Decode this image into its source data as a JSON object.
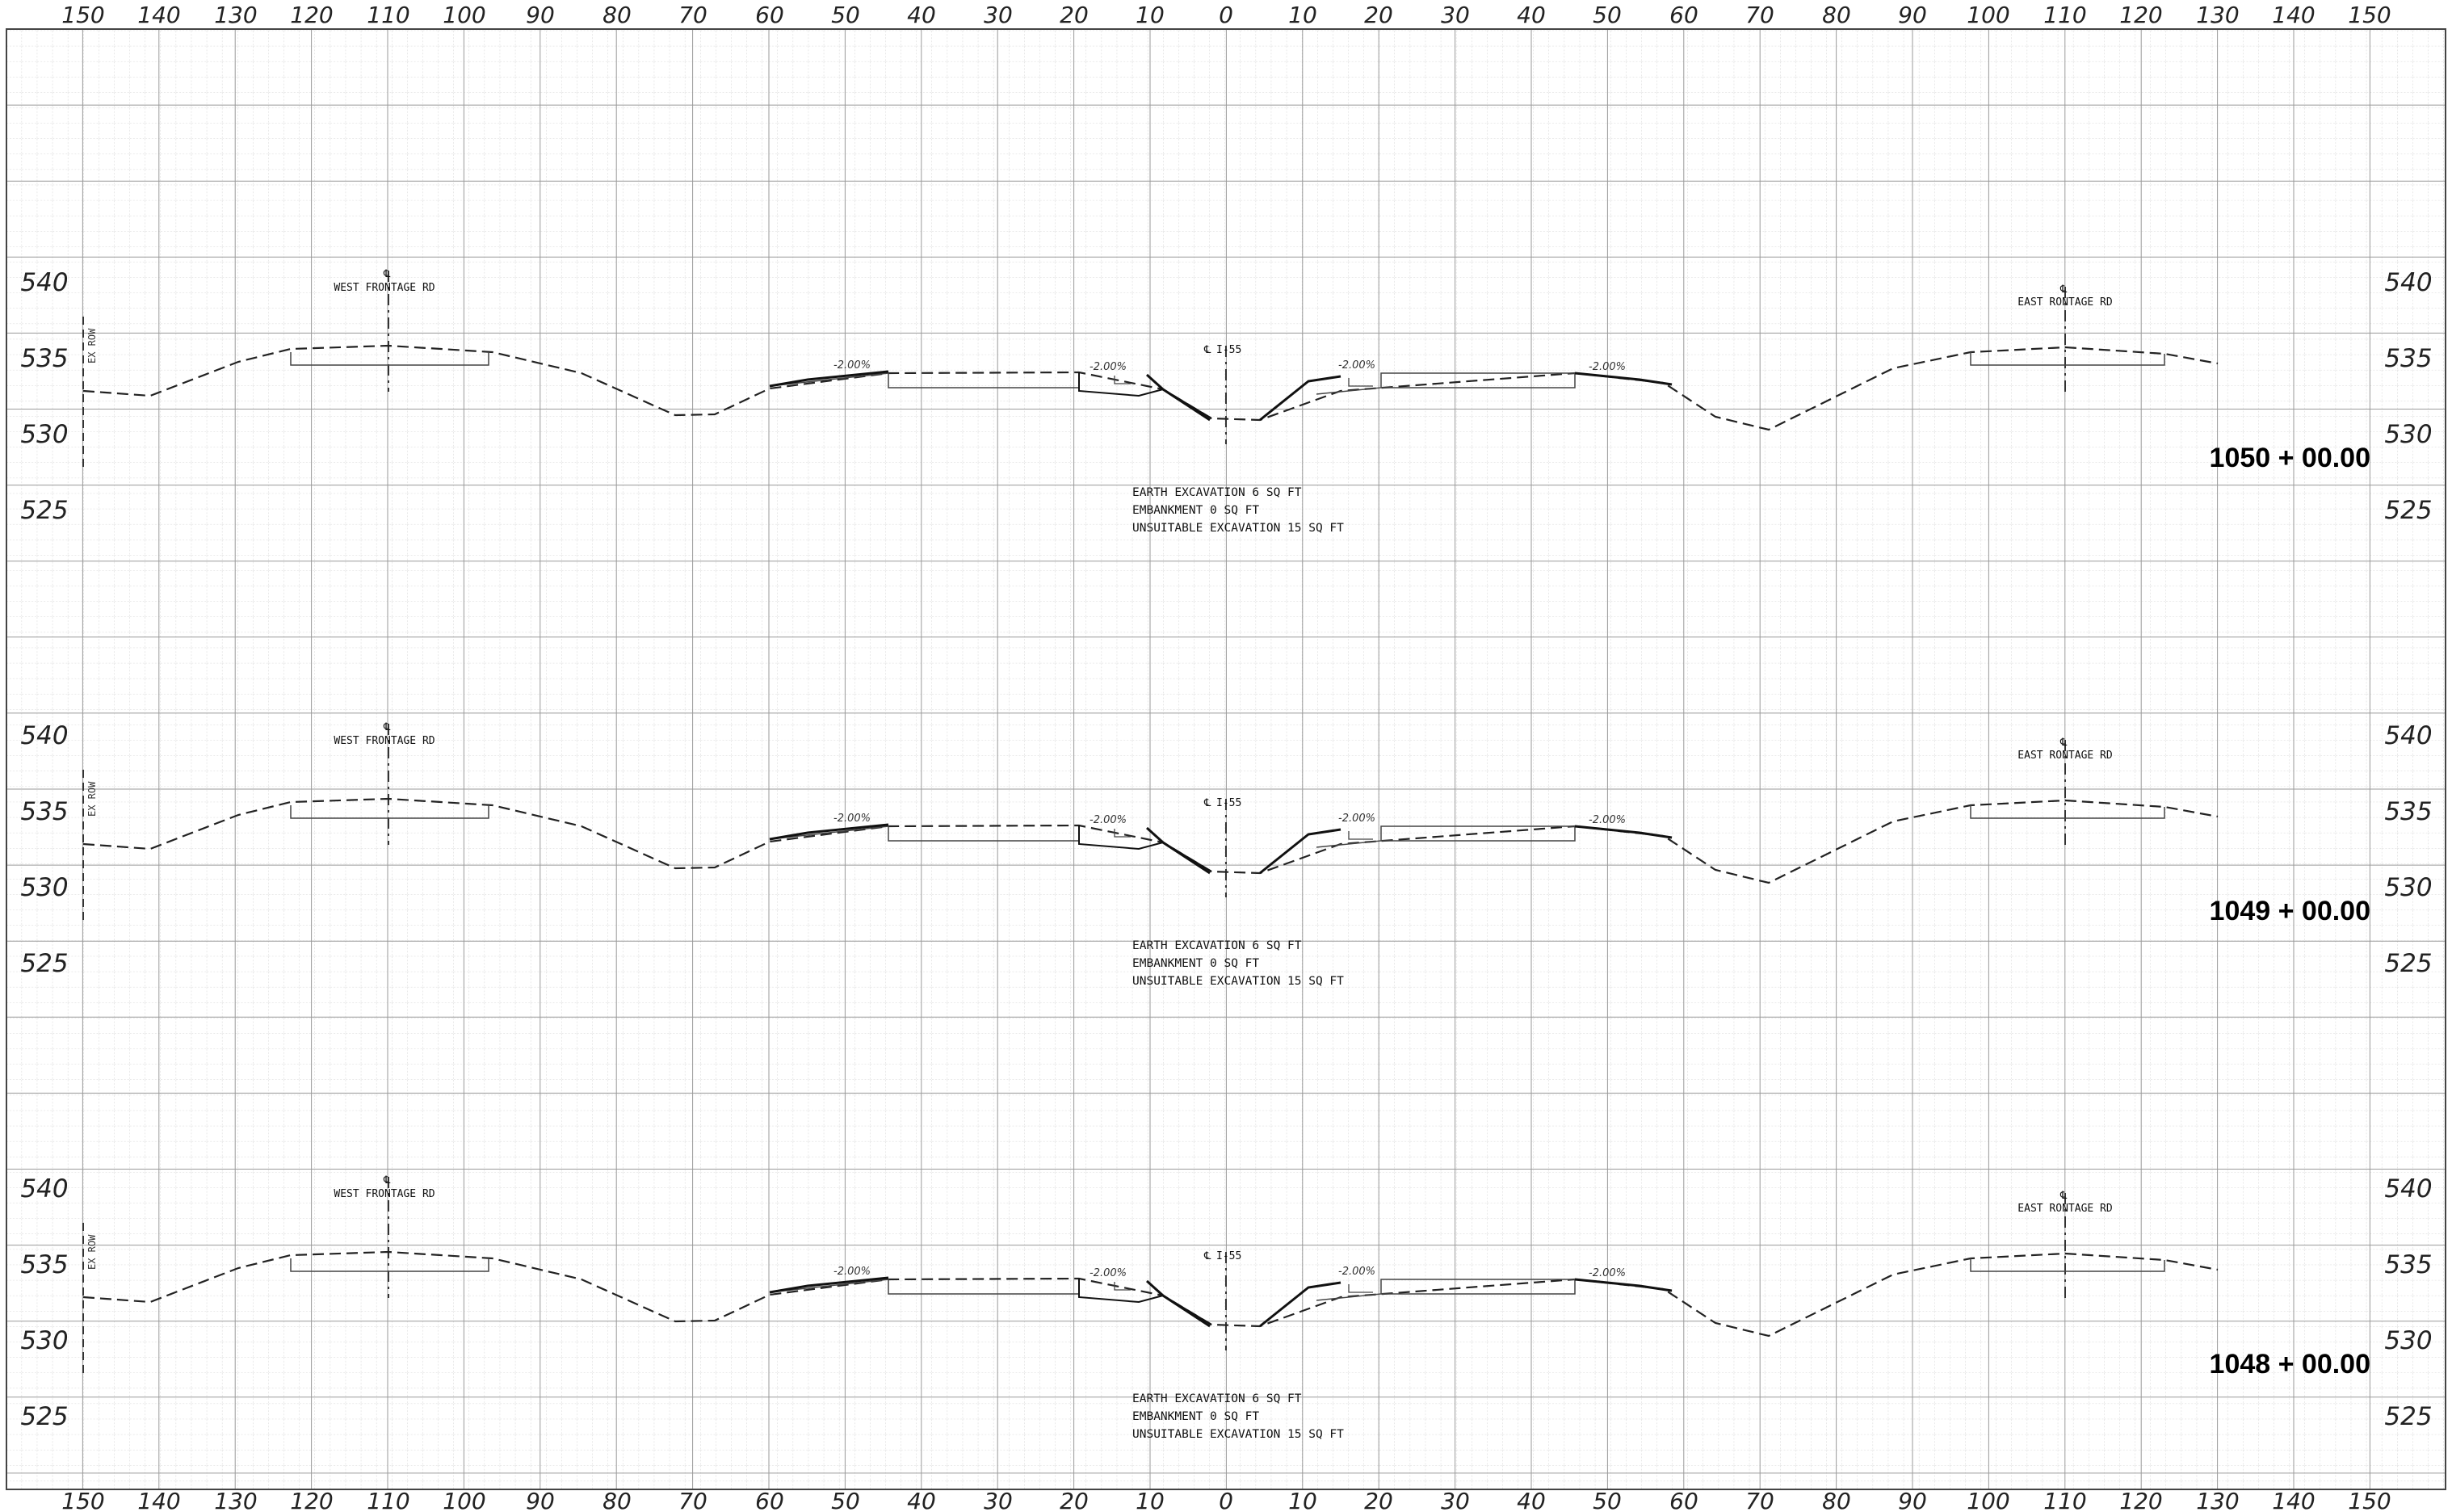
{
  "x_axis": {
    "labels": [
      "150",
      "140",
      "130",
      "120",
      "110",
      "100",
      "90",
      "80",
      "70",
      "60",
      "50",
      "40",
      "30",
      "20",
      "10",
      "0",
      "10",
      "20",
      "30",
      "40",
      "50",
      "60",
      "70",
      "80",
      "90",
      "100",
      "110",
      "120",
      "130",
      "140",
      "150"
    ]
  },
  "sections": [
    {
      "station": "1050 + 00.00",
      "elevations": [
        "540",
        "535",
        "530",
        "525"
      ],
      "centerline_west": "WEST FRONTAGE RD",
      "centerline_main": "I-55",
      "centerline_east": "EAST RONTAGE RD",
      "row_label": "EX ROW",
      "slopes": [
        "-2.00%",
        "-2.00%",
        "-2.00%",
        "-2.00%"
      ],
      "quantities": [
        "EARTH EXCAVATION 6 SQ FT",
        "EMBANKMENT 0 SQ FT",
        "UNSUITABLE EXCAVATION 15 SQ FT"
      ]
    },
    {
      "station": "1049 + 00.00",
      "elevations": [
        "540",
        "535",
        "530",
        "525"
      ],
      "centerline_west": "WEST FRONTAGE RD",
      "centerline_main": "I-55",
      "centerline_east": "EAST RONTAGE RD",
      "row_label": "EX ROW",
      "slopes": [
        "-2.00%",
        "-2.00%",
        "-2.00%",
        "-2.00%"
      ],
      "quantities": [
        "EARTH EXCAVATION 6 SQ FT",
        "EMBANKMENT 0 SQ FT",
        "UNSUITABLE EXCAVATION 15 SQ FT"
      ]
    },
    {
      "station": "1048 + 00.00",
      "elevations": [
        "540",
        "535",
        "530",
        "525"
      ],
      "centerline_west": "WEST FRONTAGE RD",
      "centerline_main": "I-55",
      "centerline_east": "EAST RONTAGE RD",
      "row_label": "EX ROW",
      "slopes": [
        "-2.00%",
        "-2.00%",
        "-2.00%",
        "-2.00%"
      ],
      "quantities": [
        "EARTH EXCAVATION 6 SQ FT",
        "EMBANKMENT 0 SQ FT",
        "UNSUITABLE EXCAVATION 15 SQ FT"
      ]
    }
  ]
}
